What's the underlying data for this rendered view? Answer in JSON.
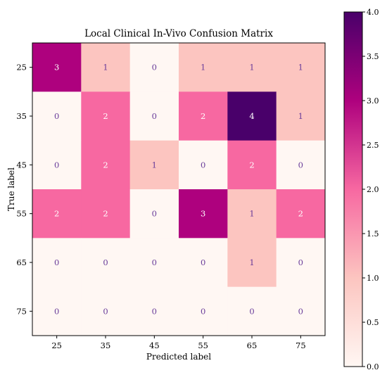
{
  "chart_data": {
    "type": "heatmap",
    "title": "Local Clinical In-Vivo Confusion Matrix",
    "xlabel": "Predicted label",
    "ylabel": "True label",
    "x_categories": [
      "25",
      "35",
      "45",
      "55",
      "65",
      "75"
    ],
    "y_categories": [
      "25",
      "35",
      "45",
      "55",
      "65",
      "75"
    ],
    "values": [
      [
        3,
        1,
        0,
        1,
        1,
        1
      ],
      [
        0,
        2,
        0,
        2,
        4,
        1
      ],
      [
        0,
        2,
        1,
        0,
        2,
        0
      ],
      [
        2,
        2,
        0,
        3,
        1,
        2
      ],
      [
        0,
        0,
        0,
        0,
        1,
        0
      ],
      [
        0,
        0,
        0,
        0,
        0,
        0
      ]
    ],
    "colormap": "RdPu",
    "color_stops": [
      "#fff7f3",
      "#fcc5c0",
      "#f768a1",
      "#ae017e",
      "#49006a"
    ],
    "text_colors": {
      "dark_cell": "#ffffff",
      "light_cell": "#6a3d9a"
    },
    "colorbar": {
      "range": [
        0.0,
        4.0
      ],
      "ticks": [
        "0.0",
        "0.5",
        "1.0",
        "1.5",
        "2.0",
        "2.5",
        "3.0",
        "3.5",
        "4.0"
      ]
    },
    "grid": false
  }
}
